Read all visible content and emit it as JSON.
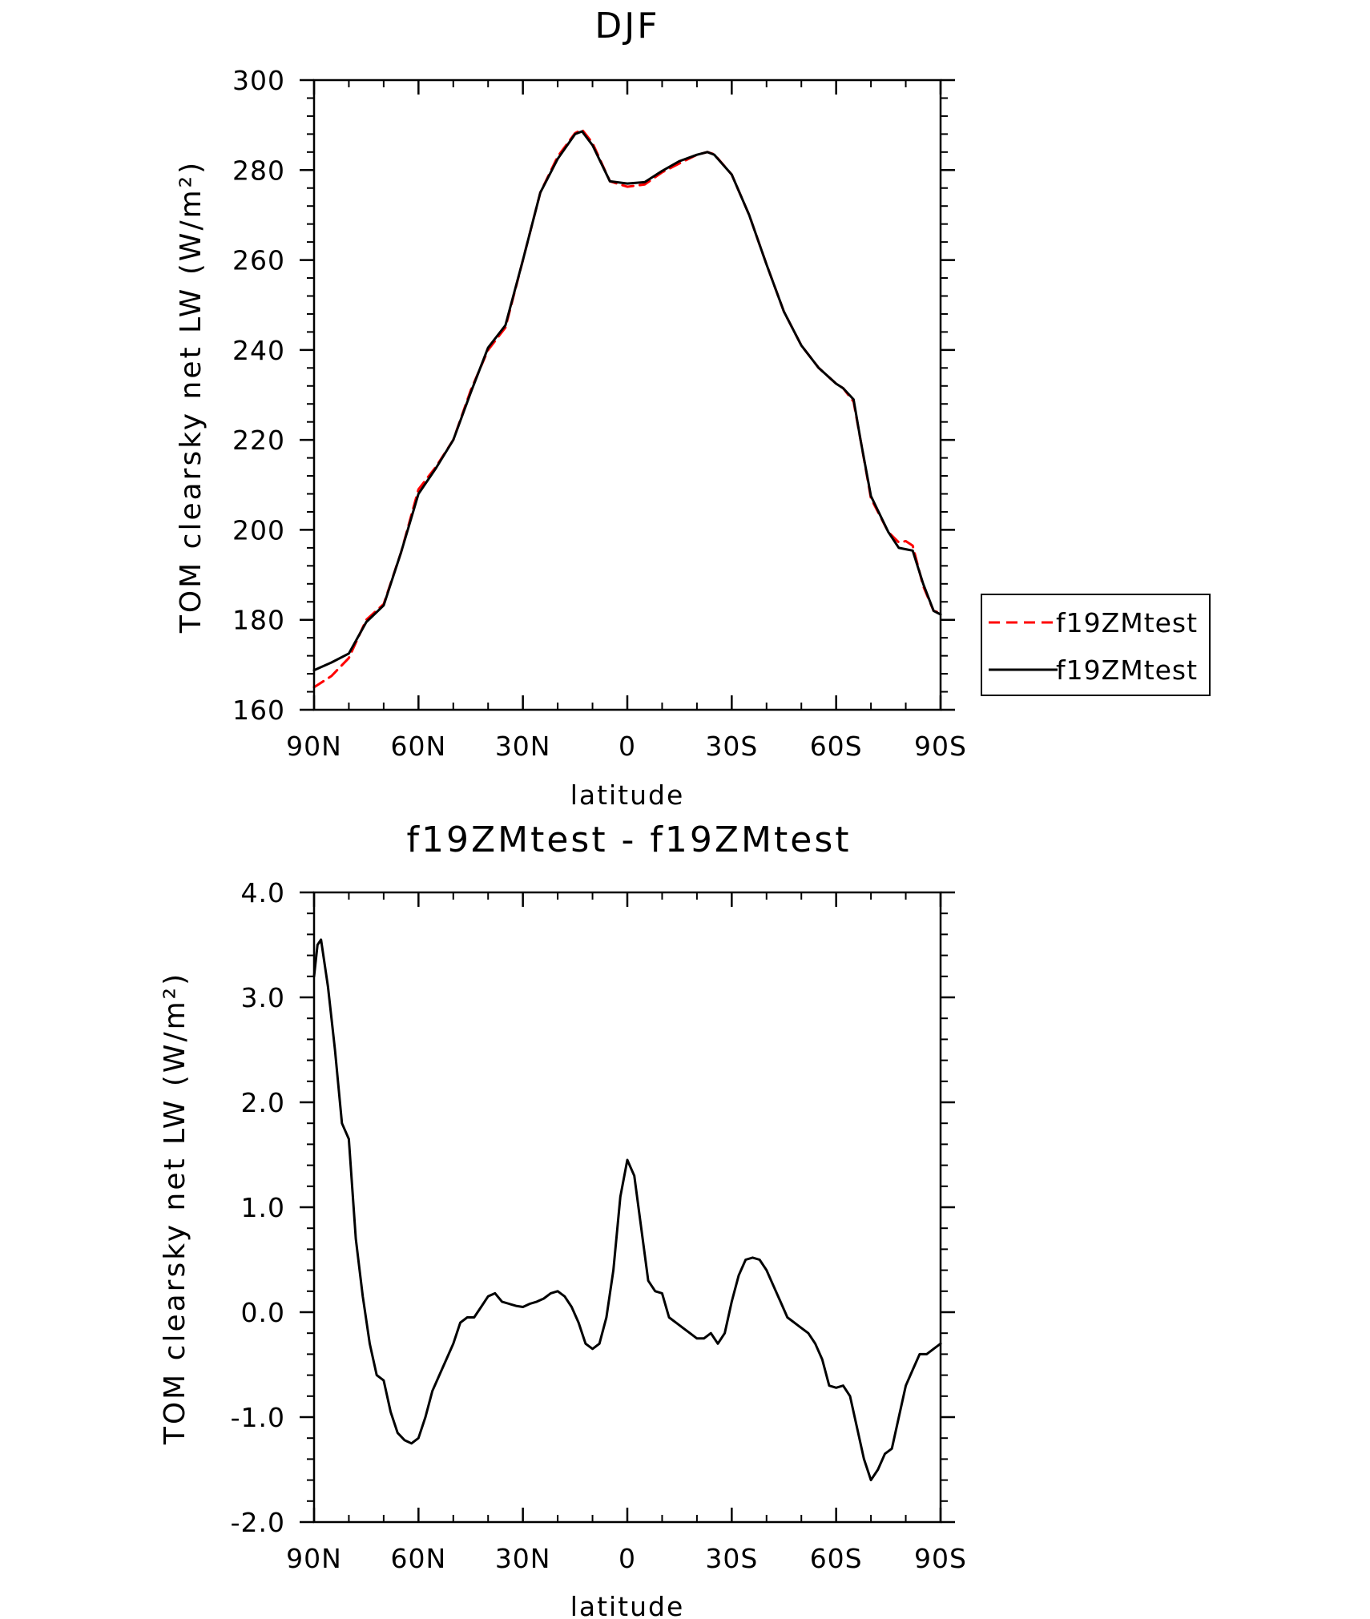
{
  "chart_data": [
    {
      "type": "line",
      "title": "DJF",
      "xlabel": "latitude",
      "ylabel": "TOM clearsky net LW (W/m²)",
      "x_axis_direction": "north-to-south",
      "x_tick_labels": [
        "90N",
        "60N",
        "30N",
        "0",
        "30S",
        "60S",
        "90S"
      ],
      "xlim": [
        90,
        -90
      ],
      "ylim": [
        160,
        300
      ],
      "y_ticks": [
        160,
        180,
        200,
        220,
        240,
        260,
        280,
        300
      ],
      "y_tick_labels": [
        "160",
        "180",
        "200",
        "220",
        "240",
        "260",
        "280",
        "300"
      ],
      "grid": false,
      "legend_placement": "right",
      "series": [
        {
          "name": "f19ZMtest",
          "color": "#ff0000",
          "style": "dashed",
          "x": [
            90,
            85,
            80,
            75,
            70,
            65,
            60,
            55,
            50,
            45,
            40,
            35,
            30,
            25,
            20,
            15,
            13,
            10,
            5,
            0,
            -5,
            -10,
            -15,
            -20,
            -23,
            -25,
            -30,
            -35,
            -40,
            -45,
            -50,
            -55,
            -60,
            -62,
            -65,
            -67,
            -70,
            -75,
            -78,
            -80,
            -82,
            -85,
            -88,
            -90
          ],
          "values": [
            165,
            167.5,
            171.5,
            180,
            183.5,
            195,
            209,
            214,
            220,
            231,
            240,
            245,
            260,
            275,
            283,
            288.2,
            289,
            286,
            277.5,
            276.3,
            276.8,
            279.5,
            281.5,
            283.4,
            284,
            283.5,
            279,
            270,
            259,
            248.5,
            241,
            236,
            232.5,
            231.5,
            228.5,
            220,
            207,
            199.5,
            197.2,
            197.5,
            196.5,
            187.5,
            182,
            181.5
          ]
        },
        {
          "name": "f19ZMtest",
          "color": "#000000",
          "style": "solid",
          "x": [
            90,
            85,
            80,
            75,
            70,
            65,
            60,
            55,
            50,
            45,
            40,
            35,
            30,
            25,
            20,
            15,
            13,
            10,
            5,
            0,
            -5,
            -10,
            -15,
            -20,
            -23,
            -25,
            -30,
            -35,
            -40,
            -45,
            -50,
            -55,
            -60,
            -62,
            -65,
            -67,
            -70,
            -75,
            -78,
            -80,
            -82,
            -85,
            -88,
            -90
          ],
          "values": [
            168.8,
            170.5,
            172.5,
            179.5,
            183.2,
            195,
            208,
            213.7,
            220,
            230.5,
            240.5,
            245.5,
            260,
            275,
            282.5,
            288,
            288.6,
            285.5,
            277.5,
            277,
            277.3,
            279.8,
            282,
            283.4,
            284,
            283.4,
            279,
            270,
            259,
            248.5,
            241,
            236,
            232.5,
            231.5,
            229,
            220,
            207.5,
            199.5,
            196,
            195.7,
            195.4,
            188,
            182,
            181.2
          ]
        }
      ]
    },
    {
      "type": "line",
      "title": "f19ZMtest - f19ZMtest",
      "xlabel": "latitude",
      "ylabel": "TOM clearsky net LW (W/m²)",
      "x_axis_direction": "north-to-south",
      "x_tick_labels": [
        "90N",
        "60N",
        "30N",
        "0",
        "30S",
        "60S",
        "90S"
      ],
      "xlim": [
        90,
        -90
      ],
      "ylim": [
        -2.0,
        4.0
      ],
      "y_ticks": [
        -2.0,
        -1.0,
        0.0,
        1.0,
        2.0,
        3.0,
        4.0
      ],
      "y_tick_labels": [
        "-2.0",
        "-1.0",
        "0.0",
        "1.0",
        "2.0",
        "3.0",
        "4.0"
      ],
      "grid": false,
      "series": [
        {
          "color": "#000000",
          "style": "solid",
          "x": [
            90,
            89,
            88,
            86,
            84,
            82,
            80,
            78,
            76,
            74,
            72,
            70,
            68,
            66,
            64,
            62,
            60,
            58,
            56,
            54,
            52,
            50,
            48,
            46,
            44,
            42,
            40,
            38,
            36,
            34,
            32,
            30,
            28,
            26,
            24,
            22,
            20,
            18,
            16,
            14,
            12,
            10,
            8,
            6,
            4,
            2,
            0,
            -2,
            -4,
            -6,
            -8,
            -10,
            -12,
            -14,
            -16,
            -18,
            -20,
            -22,
            -24,
            -26,
            -28,
            -30,
            -32,
            -34,
            -36,
            -38,
            -40,
            -42,
            -44,
            -46,
            -48,
            -50,
            -52,
            -54,
            -56,
            -58,
            -60,
            -62,
            -64,
            -66,
            -68,
            -70,
            -72,
            -74,
            -76,
            -78,
            -80,
            -82,
            -84,
            -86,
            -88,
            -90
          ],
          "values": [
            3.2,
            3.5,
            3.55,
            3.1,
            2.5,
            1.8,
            1.65,
            0.7,
            0.15,
            -0.3,
            -0.6,
            -0.65,
            -0.95,
            -1.15,
            -1.22,
            -1.25,
            -1.2,
            -1.0,
            -0.75,
            -0.6,
            -0.45,
            -0.3,
            -0.1,
            -0.05,
            -0.05,
            0.05,
            0.15,
            0.18,
            0.1,
            0.08,
            0.06,
            0.05,
            0.08,
            0.1,
            0.13,
            0.18,
            0.2,
            0.15,
            0.05,
            -0.1,
            -0.3,
            -0.35,
            -0.3,
            -0.05,
            0.4,
            1.1,
            1.45,
            1.3,
            0.8,
            0.3,
            0.2,
            0.18,
            -0.05,
            -0.1,
            -0.15,
            -0.2,
            -0.25,
            -0.25,
            -0.2,
            -0.3,
            -0.2,
            0.1,
            0.35,
            0.5,
            0.52,
            0.5,
            0.4,
            0.25,
            0.1,
            -0.05,
            -0.1,
            -0.15,
            -0.2,
            -0.3,
            -0.45,
            -0.7,
            -0.72,
            -0.7,
            -0.8,
            -1.1,
            -1.4,
            -1.6,
            -1.5,
            -1.35,
            -1.3,
            -1.0,
            -0.7,
            -0.55,
            -0.4,
            -0.4,
            -0.35,
            -0.3
          ]
        }
      ]
    }
  ]
}
